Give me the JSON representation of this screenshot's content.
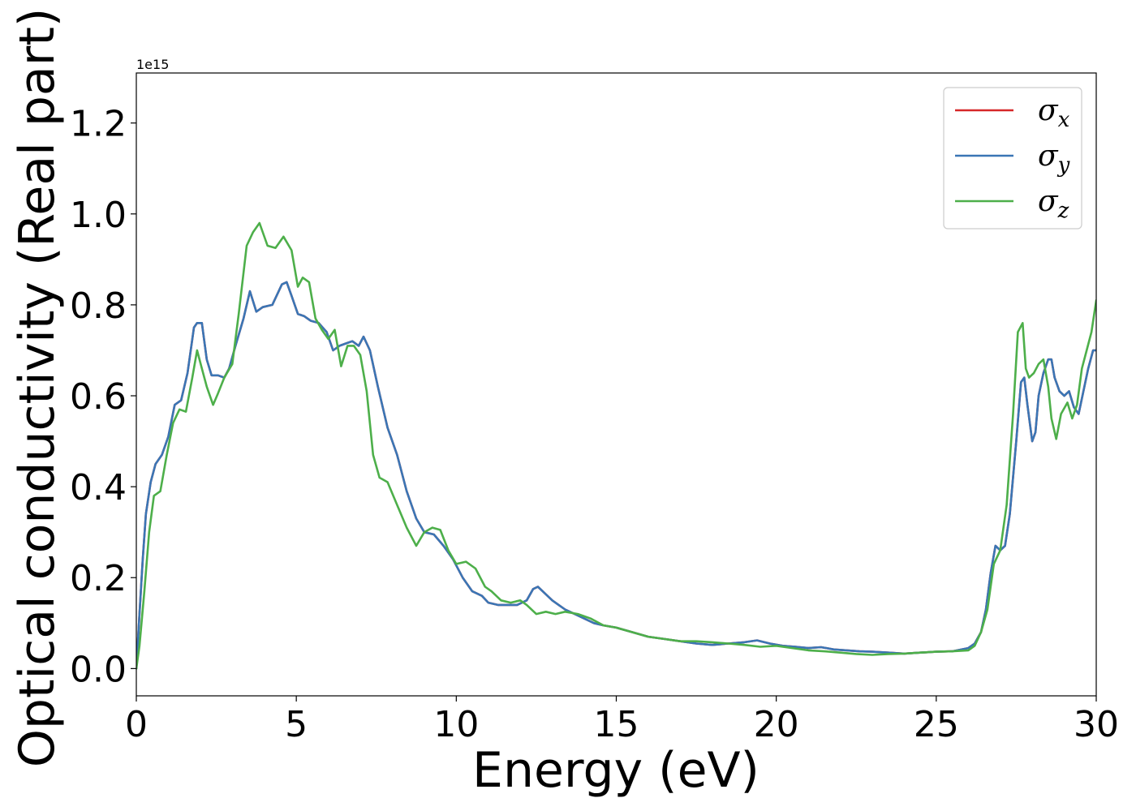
{
  "chart_data": {
    "type": "line",
    "xlabel": "Energy (eV)",
    "ylabel": "Optical conductivity (Real part)",
    "y_offset_label": "1e15",
    "xlim": [
      0,
      30
    ],
    "ylim": [
      -0.06,
      1.31
    ],
    "x_ticks": [
      0,
      5,
      10,
      15,
      20,
      25,
      30
    ],
    "x_tick_labels": [
      "0",
      "5",
      "10",
      "15",
      "20",
      "25",
      "30"
    ],
    "y_ticks": [
      0.0,
      0.2,
      0.4,
      0.6,
      0.8,
      1.0,
      1.2
    ],
    "y_tick_labels": [
      "0.0",
      "0.2",
      "0.4",
      "0.6",
      "0.8",
      "1.0",
      "1.2"
    ],
    "grid": false,
    "legend_position": "top-right",
    "series": [
      {
        "name": "σx",
        "symbol": "σ",
        "subscript": "x",
        "color": "#d62728",
        "x": [
          0,
          0.1,
          0.2,
          0.3,
          0.45,
          0.6,
          0.8,
          1.0,
          1.2,
          1.4,
          1.6,
          1.8,
          1.9,
          2.05,
          2.2,
          2.35,
          2.55,
          2.75,
          2.9,
          3.1,
          3.35,
          3.55,
          3.75,
          3.95,
          4.25,
          4.55,
          4.7,
          4.85,
          5.05,
          5.25,
          5.45,
          5.7,
          5.95,
          6.15,
          6.35,
          6.55,
          6.75,
          6.95,
          7.1,
          7.3,
          7.55,
          7.85,
          8.15,
          8.45,
          8.75,
          9.0,
          9.3,
          9.6,
          9.9,
          10.2,
          10.5,
          10.8,
          11.0,
          11.3,
          11.6,
          11.9,
          12.2,
          12.4,
          12.55,
          12.7,
          12.85,
          13.0,
          13.2,
          13.4,
          13.7,
          14.0,
          14.3,
          14.6,
          15.0,
          15.5,
          16.0,
          16.5,
          17.0,
          17.5,
          18.0,
          18.5,
          19.0,
          19.4,
          19.8,
          20.2,
          20.6,
          21.0,
          21.4,
          21.8,
          22.2,
          22.6,
          23.0,
          23.5,
          24.0,
          24.5,
          25.0,
          25.5,
          26.0,
          26.2,
          26.4,
          26.55,
          26.7,
          26.85,
          27.0,
          27.15,
          27.3,
          27.5,
          27.65,
          27.75,
          27.85,
          28.0,
          28.1,
          28.2,
          28.35,
          28.5,
          28.6,
          28.7,
          28.85,
          29.0,
          29.15,
          29.3,
          29.45,
          29.6,
          29.75,
          29.9,
          30.0
        ],
        "values": [
          0.0,
          0.12,
          0.24,
          0.34,
          0.41,
          0.45,
          0.47,
          0.51,
          0.58,
          0.59,
          0.65,
          0.75,
          0.76,
          0.76,
          0.68,
          0.645,
          0.645,
          0.64,
          0.66,
          0.71,
          0.77,
          0.83,
          0.785,
          0.795,
          0.8,
          0.845,
          0.85,
          0.82,
          0.78,
          0.775,
          0.765,
          0.76,
          0.74,
          0.7,
          0.71,
          0.715,
          0.72,
          0.71,
          0.73,
          0.7,
          0.62,
          0.53,
          0.47,
          0.39,
          0.33,
          0.3,
          0.295,
          0.27,
          0.24,
          0.2,
          0.17,
          0.16,
          0.145,
          0.14,
          0.14,
          0.14,
          0.15,
          0.175,
          0.18,
          0.17,
          0.16,
          0.15,
          0.14,
          0.13,
          0.12,
          0.11,
          0.1,
          0.095,
          0.09,
          0.08,
          0.07,
          0.065,
          0.06,
          0.055,
          0.052,
          0.055,
          0.058,
          0.062,
          0.055,
          0.05,
          0.048,
          0.045,
          0.047,
          0.042,
          0.04,
          0.038,
          0.037,
          0.035,
          0.033,
          0.035,
          0.037,
          0.038,
          0.045,
          0.055,
          0.08,
          0.13,
          0.21,
          0.27,
          0.26,
          0.27,
          0.34,
          0.5,
          0.63,
          0.64,
          0.58,
          0.5,
          0.52,
          0.6,
          0.65,
          0.68,
          0.68,
          0.64,
          0.61,
          0.6,
          0.61,
          0.575,
          0.56,
          0.61,
          0.66,
          0.7,
          0.7
        ]
      },
      {
        "name": "σy",
        "symbol": "σ",
        "subscript": "y",
        "color": "#3a76b5",
        "x": [
          0,
          0.1,
          0.2,
          0.3,
          0.45,
          0.6,
          0.8,
          1.0,
          1.2,
          1.4,
          1.6,
          1.8,
          1.9,
          2.05,
          2.2,
          2.35,
          2.55,
          2.75,
          2.9,
          3.1,
          3.35,
          3.55,
          3.75,
          3.95,
          4.25,
          4.55,
          4.7,
          4.85,
          5.05,
          5.25,
          5.45,
          5.7,
          5.95,
          6.15,
          6.35,
          6.55,
          6.75,
          6.95,
          7.1,
          7.3,
          7.55,
          7.85,
          8.15,
          8.45,
          8.75,
          9.0,
          9.3,
          9.6,
          9.9,
          10.2,
          10.5,
          10.8,
          11.0,
          11.3,
          11.6,
          11.9,
          12.2,
          12.4,
          12.55,
          12.7,
          12.85,
          13.0,
          13.2,
          13.4,
          13.7,
          14.0,
          14.3,
          14.6,
          15.0,
          15.5,
          16.0,
          16.5,
          17.0,
          17.5,
          18.0,
          18.5,
          19.0,
          19.4,
          19.8,
          20.2,
          20.6,
          21.0,
          21.4,
          21.8,
          22.2,
          22.6,
          23.0,
          23.5,
          24.0,
          24.5,
          25.0,
          25.5,
          26.0,
          26.2,
          26.4,
          26.55,
          26.7,
          26.85,
          27.0,
          27.15,
          27.3,
          27.5,
          27.65,
          27.75,
          27.85,
          28.0,
          28.1,
          28.2,
          28.35,
          28.5,
          28.6,
          28.7,
          28.85,
          29.0,
          29.15,
          29.3,
          29.45,
          29.6,
          29.75,
          29.9,
          30.0
        ],
        "values": [
          0.0,
          0.12,
          0.24,
          0.34,
          0.41,
          0.45,
          0.47,
          0.51,
          0.58,
          0.59,
          0.65,
          0.75,
          0.76,
          0.76,
          0.68,
          0.645,
          0.645,
          0.64,
          0.66,
          0.71,
          0.77,
          0.83,
          0.785,
          0.795,
          0.8,
          0.845,
          0.85,
          0.82,
          0.78,
          0.775,
          0.765,
          0.76,
          0.74,
          0.7,
          0.71,
          0.715,
          0.72,
          0.71,
          0.73,
          0.7,
          0.62,
          0.53,
          0.47,
          0.39,
          0.33,
          0.3,
          0.295,
          0.27,
          0.24,
          0.2,
          0.17,
          0.16,
          0.145,
          0.14,
          0.14,
          0.14,
          0.15,
          0.175,
          0.18,
          0.17,
          0.16,
          0.15,
          0.14,
          0.13,
          0.12,
          0.11,
          0.1,
          0.095,
          0.09,
          0.08,
          0.07,
          0.065,
          0.06,
          0.055,
          0.052,
          0.055,
          0.058,
          0.062,
          0.055,
          0.05,
          0.048,
          0.045,
          0.047,
          0.042,
          0.04,
          0.038,
          0.037,
          0.035,
          0.033,
          0.035,
          0.037,
          0.038,
          0.045,
          0.055,
          0.08,
          0.13,
          0.21,
          0.27,
          0.26,
          0.27,
          0.34,
          0.5,
          0.63,
          0.64,
          0.58,
          0.5,
          0.52,
          0.6,
          0.65,
          0.68,
          0.68,
          0.64,
          0.61,
          0.6,
          0.61,
          0.575,
          0.56,
          0.61,
          0.66,
          0.7,
          0.7
        ]
      },
      {
        "name": "σz",
        "symbol": "σ",
        "subscript": "z",
        "color": "#4daf4a",
        "x": [
          0,
          0.1,
          0.25,
          0.4,
          0.55,
          0.75,
          0.95,
          1.15,
          1.35,
          1.55,
          1.75,
          1.9,
          2.05,
          2.2,
          2.4,
          2.55,
          2.75,
          3.0,
          3.2,
          3.45,
          3.65,
          3.85,
          4.1,
          4.35,
          4.6,
          4.85,
          5.05,
          5.2,
          5.4,
          5.6,
          5.8,
          6.0,
          6.2,
          6.4,
          6.6,
          6.8,
          7.0,
          7.2,
          7.4,
          7.6,
          7.85,
          8.15,
          8.45,
          8.75,
          9.0,
          9.25,
          9.5,
          9.75,
          10.0,
          10.3,
          10.6,
          10.9,
          11.1,
          11.4,
          11.7,
          12.0,
          12.2,
          12.5,
          12.8,
          13.1,
          13.4,
          13.8,
          14.2,
          14.6,
          15.0,
          15.5,
          16.0,
          16.5,
          17.0,
          17.5,
          18.0,
          18.5,
          19.0,
          19.5,
          20.0,
          20.5,
          21.0,
          21.5,
          22.0,
          22.5,
          23.0,
          23.5,
          24.0,
          24.5,
          25.0,
          25.5,
          26.0,
          26.2,
          26.4,
          26.6,
          26.8,
          27.0,
          27.2,
          27.4,
          27.55,
          27.7,
          27.8,
          27.9,
          28.05,
          28.2,
          28.35,
          28.5,
          28.6,
          28.75,
          28.9,
          29.1,
          29.25,
          29.4,
          29.55,
          29.7,
          29.85,
          30.0
        ],
        "values": [
          0.0,
          0.05,
          0.17,
          0.3,
          0.38,
          0.39,
          0.47,
          0.54,
          0.57,
          0.565,
          0.64,
          0.7,
          0.66,
          0.62,
          0.58,
          0.605,
          0.64,
          0.67,
          0.78,
          0.93,
          0.96,
          0.98,
          0.93,
          0.925,
          0.95,
          0.92,
          0.84,
          0.86,
          0.85,
          0.77,
          0.745,
          0.725,
          0.745,
          0.665,
          0.71,
          0.71,
          0.69,
          0.61,
          0.47,
          0.42,
          0.41,
          0.36,
          0.31,
          0.27,
          0.3,
          0.31,
          0.305,
          0.26,
          0.23,
          0.235,
          0.22,
          0.18,
          0.17,
          0.15,
          0.145,
          0.15,
          0.14,
          0.12,
          0.125,
          0.12,
          0.125,
          0.12,
          0.11,
          0.095,
          0.09,
          0.08,
          0.07,
          0.065,
          0.06,
          0.06,
          0.058,
          0.055,
          0.052,
          0.048,
          0.05,
          0.045,
          0.04,
          0.038,
          0.035,
          0.032,
          0.03,
          0.032,
          0.033,
          0.035,
          0.037,
          0.038,
          0.04,
          0.05,
          0.08,
          0.13,
          0.23,
          0.26,
          0.36,
          0.56,
          0.74,
          0.76,
          0.66,
          0.64,
          0.65,
          0.67,
          0.68,
          0.62,
          0.55,
          0.505,
          0.56,
          0.585,
          0.55,
          0.58,
          0.66,
          0.7,
          0.74,
          0.81
        ]
      }
    ]
  }
}
